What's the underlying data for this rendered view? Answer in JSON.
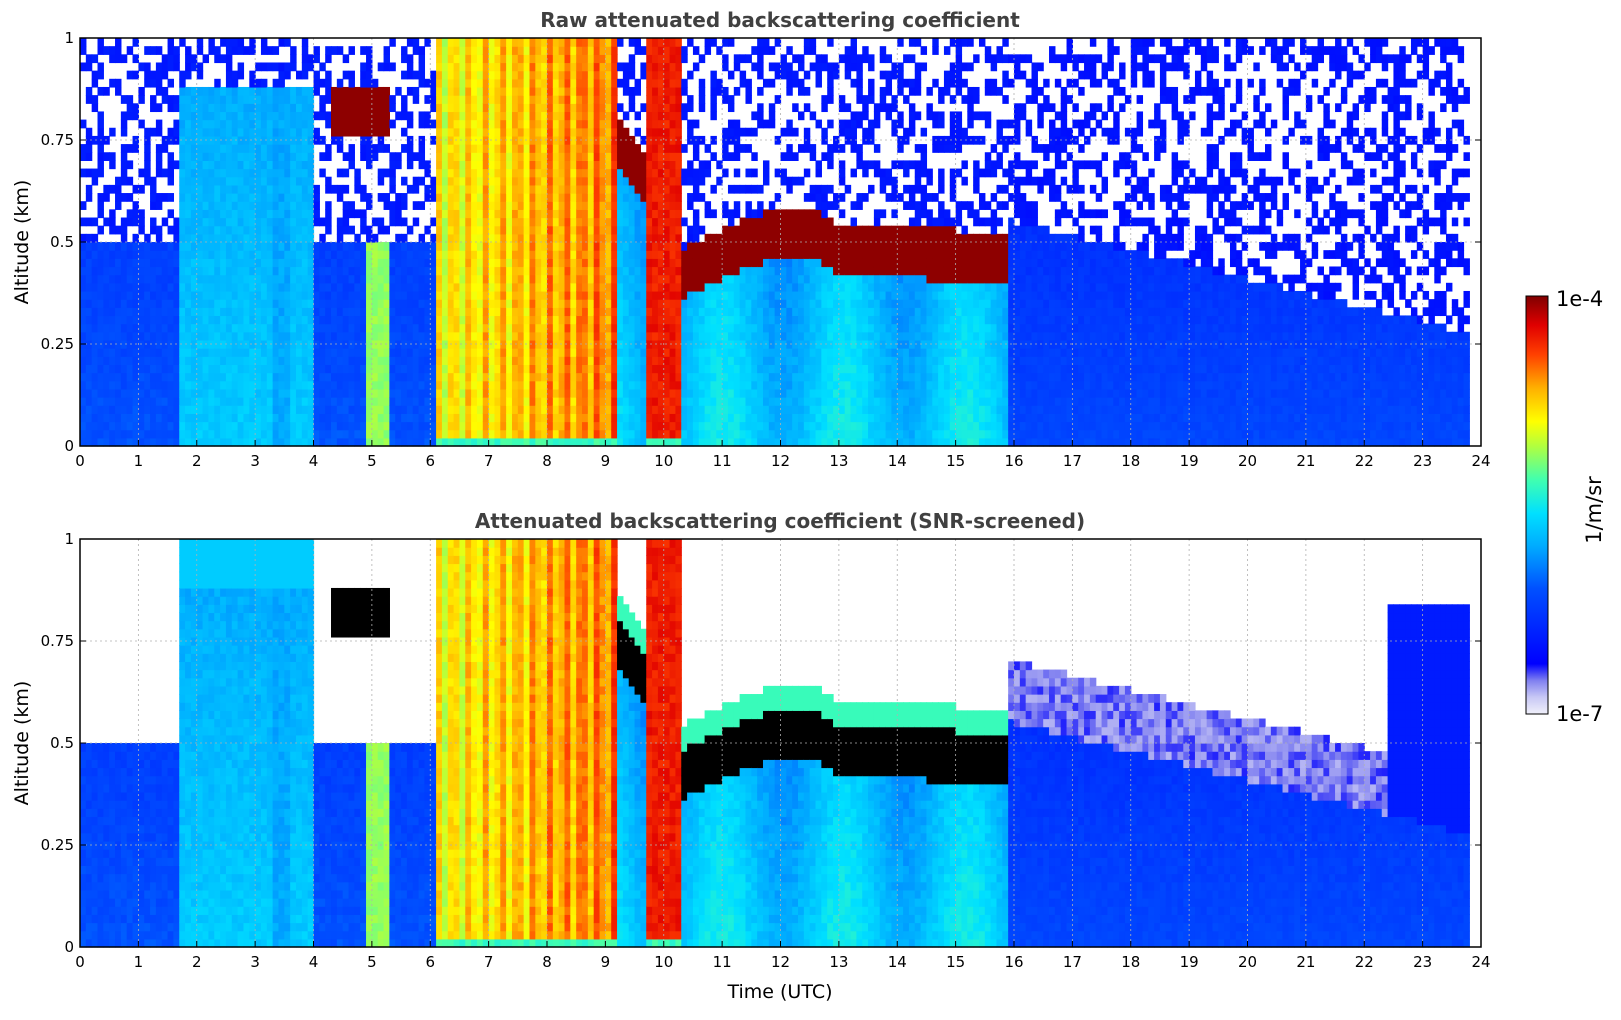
{
  "chart_data": [
    {
      "type": "heatmap",
      "title": "Raw attenuated backscattering coefficient",
      "xlabel": "",
      "ylabel": "Altitude (km)",
      "xlim": [
        0,
        24
      ],
      "ylim": [
        0,
        1
      ],
      "x_ticks": [
        "0",
        "1",
        "2",
        "3",
        "4",
        "5",
        "6",
        "7",
        "8",
        "9",
        "10",
        "11",
        "12",
        "13",
        "14",
        "15",
        "16",
        "17",
        "18",
        "19",
        "20",
        "21",
        "22",
        "23",
        "24"
      ],
      "y_ticks": [
        "0",
        "0.25",
        "0.5",
        "0.75",
        "1"
      ],
      "grid": true,
      "screened": false
    },
    {
      "type": "heatmap",
      "title": "Attenuated backscattering coefficient (SNR-screened)",
      "xlabel": "Time (UTC)",
      "ylabel": "Altitude (km)",
      "xlim": [
        0,
        24
      ],
      "ylim": [
        0,
        1
      ],
      "x_ticks": [
        "0",
        "1",
        "2",
        "3",
        "4",
        "5",
        "6",
        "7",
        "8",
        "9",
        "10",
        "11",
        "12",
        "13",
        "14",
        "15",
        "16",
        "17",
        "18",
        "19",
        "20",
        "21",
        "22",
        "23",
        "24"
      ],
      "y_ticks": [
        "0",
        "0.25",
        "0.5",
        "0.75",
        "1"
      ],
      "grid": true,
      "screened": true
    }
  ],
  "colorbar": {
    "label": "1/m/sr",
    "max_label": "1e-4",
    "min_label": "1e-7",
    "scale": "log",
    "colormap": "jet"
  },
  "features": {
    "cloud_base_km": [
      [
        9.2,
        0.68
      ],
      [
        9.6,
        0.62
      ],
      [
        10.0,
        0.48
      ],
      [
        10.3,
        0.36
      ],
      [
        10.8,
        0.4
      ],
      [
        11.5,
        0.44
      ],
      [
        12.2,
        0.47
      ],
      [
        12.6,
        0.46
      ],
      [
        13.0,
        0.42
      ],
      [
        13.5,
        0.41
      ],
      [
        14.0,
        0.42
      ],
      [
        14.5,
        0.41
      ],
      [
        15.0,
        0.41
      ],
      [
        15.5,
        0.4
      ],
      [
        15.9,
        0.39
      ]
    ],
    "high_cloud": {
      "start": 4.3,
      "end": 5.35,
      "bottom_km": 0.76,
      "top_km": 0.88
    },
    "precipitation_bands": [
      {
        "start": 6.1,
        "end": 9.2
      },
      {
        "start": 9.7,
        "end": 10.25
      }
    ],
    "data_end_hour": 23.8
  }
}
